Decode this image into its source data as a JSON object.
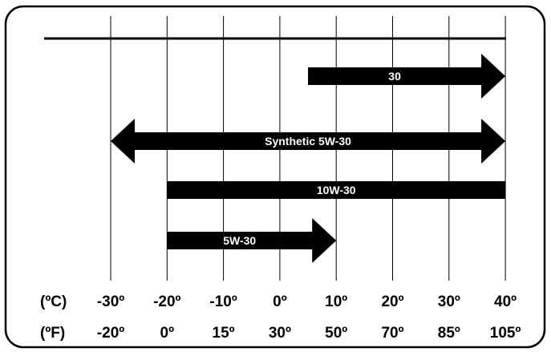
{
  "chart_data": {
    "type": "bar",
    "chart_kind": "temperature-range-arrows",
    "x_unit_primary": "(ºC)",
    "x_unit_secondary": "(ºF)",
    "x_ticks_c": [
      -30,
      -20,
      -10,
      0,
      10,
      20,
      30,
      40
    ],
    "x_tick_labels_c": [
      "-30º",
      "-20º",
      "-10º",
      "0º",
      "10º",
      "20º",
      "30º",
      "40º"
    ],
    "x_tick_labels_f": [
      "-20º",
      "0º",
      "15º",
      "30º",
      "50º",
      "70º",
      "85º",
      "105º"
    ],
    "xlim": [
      -30,
      40
    ],
    "grid": true,
    "series": [
      {
        "name": "30",
        "start_c": 5,
        "end_c": 40,
        "left_arrow": false,
        "right_arrow": true
      },
      {
        "name": "Synthetic 5W-30",
        "start_c": -30,
        "end_c": 40,
        "left_arrow": true,
        "right_arrow": true
      },
      {
        "name": "10W-30",
        "start_c": -20,
        "end_c": 40,
        "left_arrow": false,
        "right_arrow": false
      },
      {
        "name": "5W-30",
        "start_c": -20,
        "end_c": 10,
        "left_arrow": false,
        "right_arrow": true
      }
    ],
    "colors": {
      "bar": "#000000",
      "bar_text": "#ffffff",
      "grid": "#000000",
      "border": "#000000"
    }
  }
}
